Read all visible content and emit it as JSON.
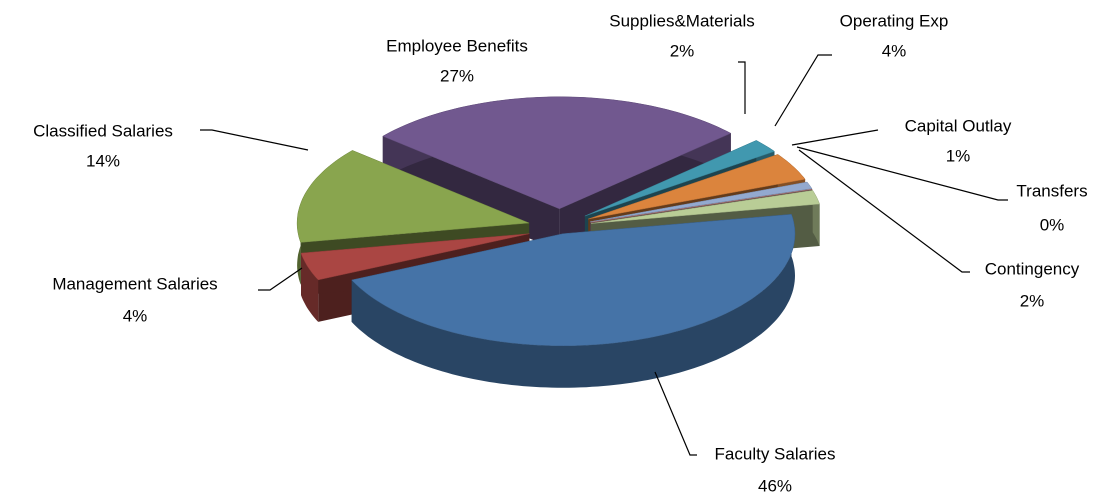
{
  "chart_data": {
    "type": "pie",
    "categories": [
      "Faculty Salaries",
      "Management Salaries",
      "Classified Salaries",
      "Employee Benefits",
      "Supplies&Materials",
      "Operating Exp",
      "Capital Outlay",
      "Transfers",
      "Contingency"
    ],
    "values": [
      46,
      4,
      14,
      27,
      2,
      4,
      1,
      0,
      2
    ],
    "value_labels": [
      "46%",
      "4%",
      "14%",
      "27%",
      "2%",
      "4%",
      "1%",
      "0%",
      "2%"
    ],
    "colors": [
      "#4573a7",
      "#aa4643",
      "#89a54e",
      "#71588f",
      "#4198af",
      "#db843d",
      "#93a9cf",
      "#d19392",
      "#b9cd96"
    ],
    "exploded": true,
    "three_d": true
  }
}
